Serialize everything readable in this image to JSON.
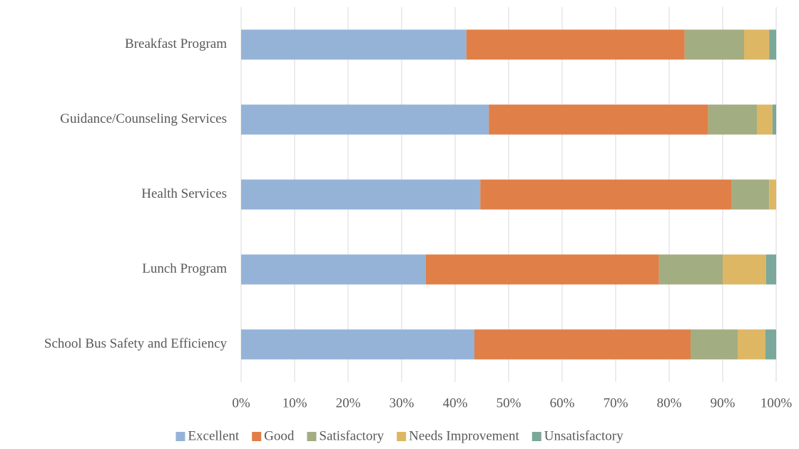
{
  "chart_data": {
    "type": "stacked_bar_horizontal",
    "categories": [
      "Breakfast Program",
      "Guidance/Counseling Services",
      "Health Services",
      "Lunch Program",
      "School Bus Safety and Efficiency"
    ],
    "series": [
      {
        "name": "Excellent",
        "color": "#95b3d7",
        "values": [
          42.1,
          46.3,
          44.7,
          34.5,
          43.6
        ]
      },
      {
        "name": "Good",
        "color": "#e07f47",
        "values": [
          40.8,
          41.0,
          47.0,
          43.6,
          40.4
        ]
      },
      {
        "name": "Satisfactory",
        "color": "#a3ad82",
        "values": [
          11.1,
          9.1,
          7.0,
          11.9,
          8.8
        ]
      },
      {
        "name": "Needs Improvement",
        "color": "#ddb764",
        "values": [
          4.7,
          2.9,
          1.3,
          8.1,
          5.2
        ]
      },
      {
        "name": "Unsatisfactory",
        "color": "#7aa89a",
        "values": [
          1.3,
          0.7,
          0,
          1.9,
          2.0
        ]
      }
    ],
    "xlim": [
      0,
      100
    ],
    "xticks": [
      {
        "value": 0,
        "label": "0%"
      },
      {
        "value": 10,
        "label": "10%"
      },
      {
        "value": 20,
        "label": "20%"
      },
      {
        "value": 30,
        "label": "30%"
      },
      {
        "value": 40,
        "label": "40%"
      },
      {
        "value": 50,
        "label": "50%"
      },
      {
        "value": 60,
        "label": "60%"
      },
      {
        "value": 70,
        "label": "70%"
      },
      {
        "value": 80,
        "label": "80%"
      },
      {
        "value": 90,
        "label": "90%"
      },
      {
        "value": 100,
        "label": "100%"
      }
    ],
    "grid": true,
    "legend": "bottom"
  }
}
